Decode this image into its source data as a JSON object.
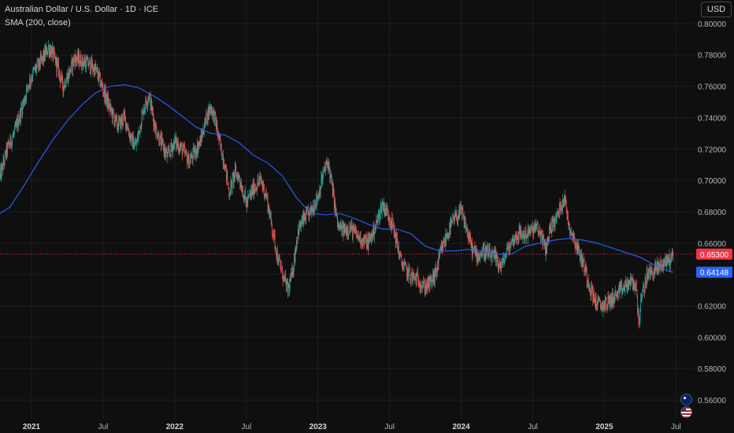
{
  "legend": {
    "title": "Australian Dollar / U.S. Dollar · 1D · ICE",
    "indicator": "SMA (200, close)"
  },
  "currency_button": "USD",
  "colors": {
    "background": "#0f0f0f",
    "up": "#26a69a",
    "down": "#ef5350",
    "sma": "#2962ff",
    "grid": "#1e1e1e",
    "last_price": "#f23645",
    "sma_label": "#2962ff"
  },
  "last_price_label": "0.65300",
  "sma_label": "0.64148",
  "icons": [
    "australia-flag-icon",
    "us-flag-icon"
  ],
  "chart_data": {
    "type": "candlestick",
    "title": "Australian Dollar / U.S. Dollar · 1D · ICE",
    "y_ticks": [
      "0.80000",
      "0.78000",
      "0.76000",
      "0.74000",
      "0.72000",
      "0.70000",
      "0.68000",
      "0.66000",
      "0.64000",
      "0.62000",
      "0.60000",
      "0.58000",
      "0.56000"
    ],
    "x_ticks": [
      {
        "label": "2021",
        "t": 2021.0,
        "bold": true
      },
      {
        "label": "Jul",
        "t": 2021.5,
        "bold": false
      },
      {
        "label": "2022",
        "t": 2022.0,
        "bold": true
      },
      {
        "label": "Jul",
        "t": 2022.5,
        "bold": false
      },
      {
        "label": "2023",
        "t": 2023.0,
        "bold": true
      },
      {
        "label": "Jul",
        "t": 2023.5,
        "bold": false
      },
      {
        "label": "2024",
        "t": 2024.0,
        "bold": true
      },
      {
        "label": "Jul",
        "t": 2024.5,
        "bold": false
      },
      {
        "label": "2025",
        "t": 2025.0,
        "bold": true
      },
      {
        "label": "Jul",
        "t": 2025.5,
        "bold": false
      }
    ],
    "ylim": [
      0.548,
      0.815
    ],
    "xlim": [
      2020.78,
      2025.63
    ],
    "grid": true,
    "close_path": [
      [
        2020.78,
        0.702
      ],
      [
        2020.83,
        0.72
      ],
      [
        2020.88,
        0.73
      ],
      [
        2020.93,
        0.745
      ],
      [
        2020.98,
        0.762
      ],
      [
        2021.02,
        0.77
      ],
      [
        2021.07,
        0.776
      ],
      [
        2021.12,
        0.785
      ],
      [
        2021.15,
        0.78
      ],
      [
        2021.18,
        0.773
      ],
      [
        2021.22,
        0.76
      ],
      [
        2021.26,
        0.768
      ],
      [
        2021.3,
        0.778
      ],
      [
        2021.35,
        0.776
      ],
      [
        2021.4,
        0.774
      ],
      [
        2021.45,
        0.77
      ],
      [
        2021.5,
        0.758
      ],
      [
        2021.55,
        0.745
      ],
      [
        2021.6,
        0.735
      ],
      [
        2021.65,
        0.74
      ],
      [
        2021.7,
        0.725
      ],
      [
        2021.73,
        0.722
      ],
      [
        2021.78,
        0.745
      ],
      [
        2021.82,
        0.755
      ],
      [
        2021.86,
        0.735
      ],
      [
        2021.9,
        0.725
      ],
      [
        2021.95,
        0.715
      ],
      [
        2022.0,
        0.725
      ],
      [
        2022.05,
        0.72
      ],
      [
        2022.1,
        0.712
      ],
      [
        2022.14,
        0.718
      ],
      [
        2022.18,
        0.725
      ],
      [
        2022.22,
        0.74
      ],
      [
        2022.25,
        0.747
      ],
      [
        2022.28,
        0.74
      ],
      [
        2022.31,
        0.725
      ],
      [
        2022.35,
        0.71
      ],
      [
        2022.38,
        0.692
      ],
      [
        2022.42,
        0.705
      ],
      [
        2022.45,
        0.702
      ],
      [
        2022.5,
        0.685
      ],
      [
        2022.55,
        0.695
      ],
      [
        2022.6,
        0.7
      ],
      [
        2022.64,
        0.69
      ],
      [
        2022.68,
        0.67
      ],
      [
        2022.72,
        0.65
      ],
      [
        2022.76,
        0.638
      ],
      [
        2022.79,
        0.63
      ],
      [
        2022.82,
        0.64
      ],
      [
        2022.86,
        0.668
      ],
      [
        2022.9,
        0.675
      ],
      [
        2022.95,
        0.68
      ],
      [
        2023.0,
        0.69
      ],
      [
        2023.04,
        0.705
      ],
      [
        2023.07,
        0.712
      ],
      [
        2023.1,
        0.695
      ],
      [
        2023.14,
        0.67
      ],
      [
        2023.18,
        0.668
      ],
      [
        2023.22,
        0.67
      ],
      [
        2023.27,
        0.665
      ],
      [
        2023.31,
        0.662
      ],
      [
        2023.35,
        0.66
      ],
      [
        2023.4,
        0.67
      ],
      [
        2023.45,
        0.685
      ],
      [
        2023.5,
        0.677
      ],
      [
        2023.54,
        0.665
      ],
      [
        2023.58,
        0.648
      ],
      [
        2023.62,
        0.642
      ],
      [
        2023.66,
        0.638
      ],
      [
        2023.7,
        0.637
      ],
      [
        2023.74,
        0.632
      ],
      [
        2023.78,
        0.634
      ],
      [
        2023.82,
        0.64
      ],
      [
        2023.86,
        0.655
      ],
      [
        2023.9,
        0.665
      ],
      [
        2023.95,
        0.675
      ],
      [
        2024.0,
        0.68
      ],
      [
        2024.04,
        0.668
      ],
      [
        2024.08,
        0.655
      ],
      [
        2024.12,
        0.652
      ],
      [
        2024.16,
        0.655
      ],
      [
        2024.2,
        0.652
      ],
      [
        2024.24,
        0.65
      ],
      [
        2024.28,
        0.645
      ],
      [
        2024.32,
        0.655
      ],
      [
        2024.36,
        0.662
      ],
      [
        2024.4,
        0.666
      ],
      [
        2024.44,
        0.665
      ],
      [
        2024.48,
        0.667
      ],
      [
        2024.52,
        0.67
      ],
      [
        2024.56,
        0.665
      ],
      [
        2024.59,
        0.655
      ],
      [
        2024.62,
        0.67
      ],
      [
        2024.66,
        0.675
      ],
      [
        2024.7,
        0.685
      ],
      [
        2024.72,
        0.69
      ],
      [
        2024.75,
        0.672
      ],
      [
        2024.78,
        0.665
      ],
      [
        2024.82,
        0.655
      ],
      [
        2024.86,
        0.645
      ],
      [
        2024.9,
        0.632
      ],
      [
        2024.94,
        0.622
      ],
      [
        2024.98,
        0.62
      ],
      [
        2025.02,
        0.622
      ],
      [
        2025.06,
        0.625
      ],
      [
        2025.1,
        0.628
      ],
      [
        2025.14,
        0.632
      ],
      [
        2025.18,
        0.635
      ],
      [
        2025.22,
        0.633
      ],
      [
        2025.24,
        0.61
      ],
      [
        2025.26,
        0.625
      ],
      [
        2025.3,
        0.64
      ],
      [
        2025.34,
        0.642
      ],
      [
        2025.38,
        0.645
      ],
      [
        2025.42,
        0.648
      ],
      [
        2025.46,
        0.65
      ],
      [
        2025.48,
        0.653
      ]
    ],
    "sma_path": [
      [
        2020.78,
        0.679
      ],
      [
        2020.85,
        0.683
      ],
      [
        2020.95,
        0.697
      ],
      [
        2021.05,
        0.712
      ],
      [
        2021.15,
        0.726
      ],
      [
        2021.25,
        0.738
      ],
      [
        2021.35,
        0.748
      ],
      [
        2021.45,
        0.756
      ],
      [
        2021.55,
        0.76
      ],
      [
        2021.65,
        0.761
      ],
      [
        2021.75,
        0.759
      ],
      [
        2021.85,
        0.754
      ],
      [
        2021.95,
        0.748
      ],
      [
        2022.05,
        0.741
      ],
      [
        2022.15,
        0.734
      ],
      [
        2022.25,
        0.73
      ],
      [
        2022.35,
        0.729
      ],
      [
        2022.45,
        0.724
      ],
      [
        2022.55,
        0.716
      ],
      [
        2022.65,
        0.711
      ],
      [
        2022.75,
        0.703
      ],
      [
        2022.85,
        0.689
      ],
      [
        2022.95,
        0.679
      ],
      [
        2023.05,
        0.678
      ],
      [
        2023.15,
        0.679
      ],
      [
        2023.25,
        0.676
      ],
      [
        2023.35,
        0.672
      ],
      [
        2023.45,
        0.669
      ],
      [
        2023.55,
        0.669
      ],
      [
        2023.65,
        0.666
      ],
      [
        2023.75,
        0.658
      ],
      [
        2023.85,
        0.655
      ],
      [
        2023.95,
        0.655
      ],
      [
        2024.05,
        0.656
      ],
      [
        2024.15,
        0.655
      ],
      [
        2024.25,
        0.653
      ],
      [
        2024.35,
        0.653
      ],
      [
        2024.45,
        0.658
      ],
      [
        2024.55,
        0.66
      ],
      [
        2024.65,
        0.662
      ],
      [
        2024.75,
        0.663
      ],
      [
        2024.85,
        0.662
      ],
      [
        2024.95,
        0.66
      ],
      [
        2025.05,
        0.657
      ],
      [
        2025.15,
        0.654
      ],
      [
        2025.25,
        0.651
      ],
      [
        2025.35,
        0.646
      ],
      [
        2025.45,
        0.642
      ],
      [
        2025.48,
        0.6415
      ]
    ],
    "last_price": 0.653,
    "sma_last": 0.64148
  }
}
